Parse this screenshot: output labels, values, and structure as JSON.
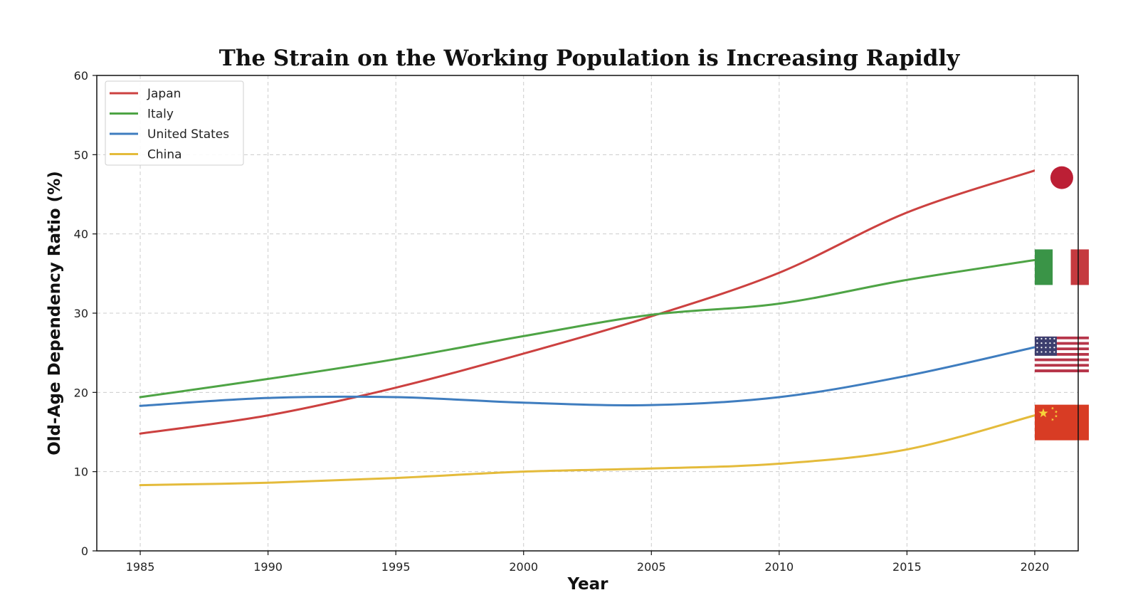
{
  "chart_data": {
    "type": "line",
    "title": "The Strain on the Working Population is Increasing Rapidly",
    "xlabel": "Year",
    "ylabel": "Old-Age Dependency Ratio (%)",
    "xlim": [
      1983.3,
      2021.7
    ],
    "ylim": [
      0,
      60
    ],
    "x_ticks": [
      1985,
      1990,
      1995,
      2000,
      2005,
      2010,
      2015,
      2020
    ],
    "y_ticks": [
      0,
      10,
      20,
      30,
      40,
      50,
      60
    ],
    "grid": true,
    "legend_position": "upper-left",
    "x": [
      1985,
      1990,
      1995,
      2000,
      2005,
      2010,
      2015,
      2020
    ],
    "series": [
      {
        "name": "Japan",
        "color": "#cc4140",
        "icon": "japan-flag-icon",
        "values": [
          14.8,
          17.1,
          20.6,
          24.9,
          29.6,
          35.1,
          42.7,
          48.0
        ]
      },
      {
        "name": "Italy",
        "color": "#4ea445",
        "icon": "italy-flag-icon",
        "values": [
          19.4,
          21.7,
          24.2,
          27.1,
          29.8,
          31.2,
          34.2,
          36.7
        ]
      },
      {
        "name": "United States",
        "color": "#3f7dbf",
        "icon": "usa-flag-icon",
        "values": [
          18.3,
          19.3,
          19.4,
          18.7,
          18.4,
          19.4,
          22.1,
          25.7
        ]
      },
      {
        "name": "China",
        "color": "#e4bb3b",
        "icon": "china-flag-icon",
        "values": [
          8.3,
          8.6,
          9.2,
          10.0,
          10.4,
          11.0,
          12.8,
          17.1
        ]
      }
    ]
  }
}
